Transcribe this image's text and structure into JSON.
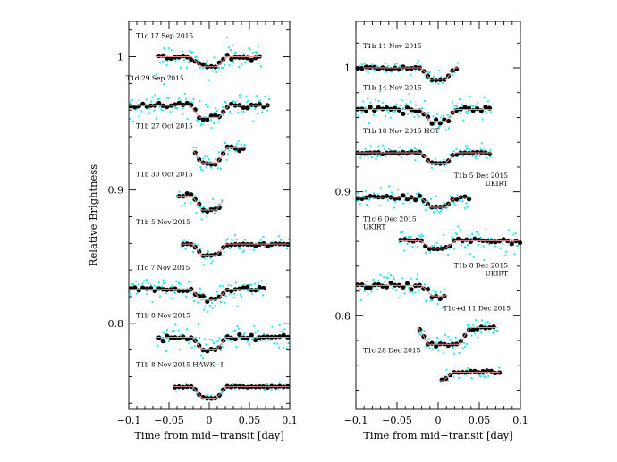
{
  "colors": {
    "raw_points": "#22e5ee",
    "binned_points": "#000000",
    "model": "#e8908c",
    "axes": "#000000"
  },
  "chart_data": [
    {
      "type": "scatter",
      "panel": "left",
      "xlabel": "Time from mid−transit [day]",
      "ylabel": "Relative Brightness",
      "xlim": [
        -0.1,
        0.1
      ],
      "ylim": [
        0.7355,
        1.0265
      ],
      "x_major_ticks": [
        -0.1,
        -0.05,
        0,
        0.05,
        0.1
      ],
      "x_tick_labels": [
        "−0.1",
        "−0.05",
        "0",
        "0.05",
        "0.1"
      ],
      "y_major_ticks": [
        0.8,
        0.9,
        1.0
      ],
      "y_tick_labels": [
        "0.8",
        "0.9",
        "1"
      ],
      "legend": "none",
      "grid": false,
      "series": [
        {
          "label": "T1c 17 Sep 2015",
          "baseline": 1.0,
          "depth": 0.0075,
          "duration": 0.032,
          "t0": 0.0,
          "tmin": -0.065,
          "tmax": 0.065,
          "scatter": 0.0048
        },
        {
          "label": "T1d 29 Sep 2015",
          "baseline": 0.9635,
          "depth": 0.009,
          "duration": 0.036,
          "t0": 0.0,
          "tmin": -0.1,
          "tmax": 0.075,
          "scatter": 0.0055
        },
        {
          "label": "T1b 27 Oct 2015",
          "baseline": 0.9315,
          "depth": 0.011,
          "duration": 0.032,
          "t0": 0.0,
          "tmin": -0.02,
          "tmax": 0.045,
          "scatter": 0.0035
        },
        {
          "label": "T1b 30 Oct 2015",
          "baseline": 0.8955,
          "depth": 0.0105,
          "duration": 0.03,
          "t0": 0.0,
          "tmin": -0.04,
          "tmax": 0.017,
          "scatter": 0.0035
        },
        {
          "label": "T1b 5 Nov 2015",
          "baseline": 0.8595,
          "depth": 0.0085,
          "duration": 0.03,
          "t0": 0.0,
          "tmin": -0.035,
          "tmax": 0.1,
          "scatter": 0.0025
        },
        {
          "label": "T1c 7 Nov 2015",
          "baseline": 0.8255,
          "depth": 0.008,
          "duration": 0.032,
          "t0": 0.0,
          "tmin": -0.1,
          "tmax": 0.068,
          "scatter": 0.0045
        },
        {
          "label": "T1b 8 Nov 2015",
          "baseline": 0.7895,
          "depth": 0.0095,
          "duration": 0.03,
          "t0": 0.0,
          "tmin": -0.065,
          "tmax": 0.1,
          "scatter": 0.0045
        },
        {
          "label": "T1b 8 Nov 2015 HAWK−I",
          "baseline": 0.7525,
          "depth": 0.0085,
          "duration": 0.03,
          "t0": 0.0,
          "tmin": -0.045,
          "tmax": 0.1,
          "scatter": 0.0012
        }
      ]
    },
    {
      "type": "scatter",
      "panel": "right",
      "xlabel": "Time from mid−transit [day]",
      "ylabel": "",
      "xlim": [
        -0.1,
        0.1
      ],
      "ylim": [
        0.7245,
        1.0375
      ],
      "x_major_ticks": [
        -0.1,
        -0.05,
        0,
        0.05,
        0.1
      ],
      "x_tick_labels": [
        "−0.1",
        "−0.05",
        "0",
        "0.05",
        "0.1"
      ],
      "y_major_ticks": [
        0.8,
        0.9,
        1.0
      ],
      "y_tick_labels": [
        "0.8",
        "0.9",
        "1"
      ],
      "legend": "none",
      "grid": false,
      "series": [
        {
          "label": "T1b 11 Nov 2015",
          "baseline": 1.0,
          "depth": 0.0095,
          "duration": 0.03,
          "t0": 0.0,
          "tmin": -0.1,
          "tmax": 0.025,
          "scatter": 0.0025
        },
        {
          "label": "T1b 14 Nov 2015",
          "baseline": 0.9665,
          "depth": 0.0095,
          "duration": 0.03,
          "t0": 0.0,
          "tmin": -0.1,
          "tmax": 0.065,
          "scatter": 0.0055
        },
        {
          "label": "T1b 18 Nov 2015 HCT",
          "baseline": 0.9315,
          "depth": 0.0085,
          "duration": 0.03,
          "t0": 0.0,
          "tmin": -0.1,
          "tmax": 0.065,
          "scatter": 0.0025
        },
        {
          "label": "T1b 5 Dec 2015\nUKIRT",
          "baseline": 0.8955,
          "depth": 0.008,
          "duration": 0.03,
          "t0": 0.0,
          "tmin": -0.1,
          "tmax": 0.04,
          "scatter": 0.004
        },
        {
          "label": "T1c 6 Dec 2015\nUKIRT",
          "baseline": 0.8605,
          "depth": 0.006,
          "duration": 0.03,
          "t0": 0.0,
          "tmin": -0.048,
          "tmax": 0.1,
          "scatter": 0.005
        },
        {
          "label": "T1b 8 Dec 2015\nUKIRT",
          "baseline": 0.8245,
          "depth": 0.0085,
          "duration": 0.028,
          "t0": 0.0,
          "tmin": -0.1,
          "tmax": 0.01,
          "scatter": 0.006
        },
        {
          "label": "T1c+d 11 Dec 2015",
          "baseline": 0.7905,
          "depth": 0.0135,
          "duration": 0.05,
          "t0": 0.007,
          "tmin": -0.025,
          "tmax": 0.072,
          "scatter": 0.0045
        },
        {
          "label": "T1c 28 Dec 2015",
          "baseline": 0.7545,
          "depth": 0.007,
          "duration": 0.024,
          "t0": 0.0,
          "tmin": 0.002,
          "tmax": 0.075,
          "scatter": 0.003
        }
      ]
    }
  ]
}
